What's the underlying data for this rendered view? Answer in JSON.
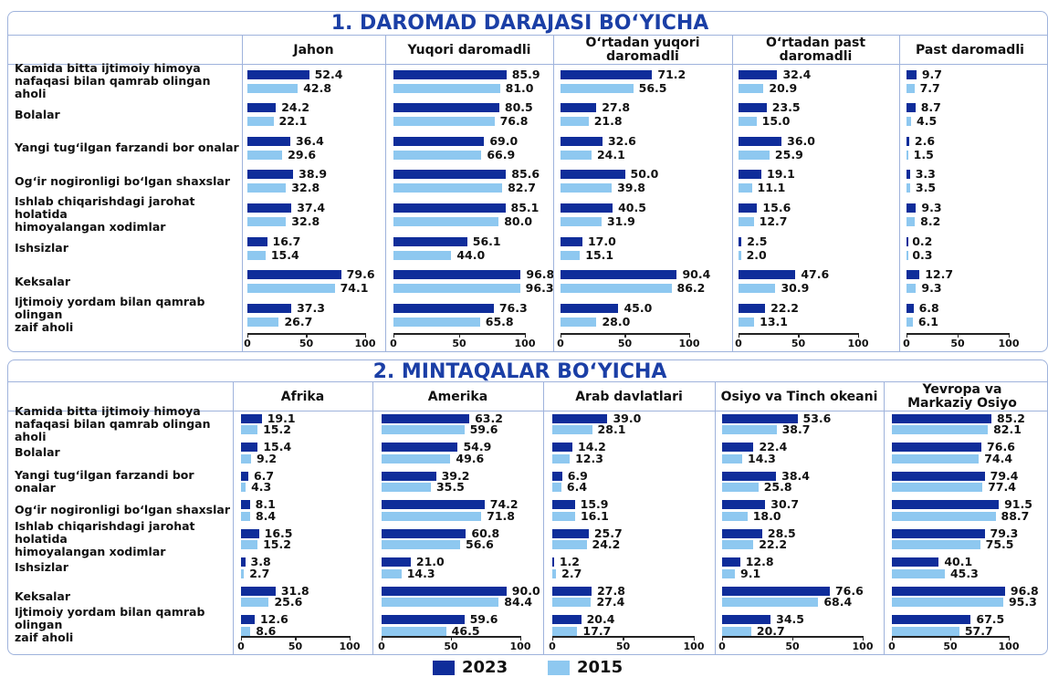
{
  "chart_data": [
    {
      "type": "bar",
      "orientation": "horizontal",
      "title": "1. DAROMAD DARAJASI BOʻYICHA",
      "categories": [
        "Kamida bitta ijtimoiy himoya\nnafaqasi bilan qamrab olingan aholi",
        "Bolalar",
        "Yangi tugʻilgan farzandi bor onalar",
        "Ogʻir nogironligi boʻlgan shaxslar",
        "Ishlab chiqarishdagi jarohat holatida\nhimoyalangan xodimlar",
        "Ishsizlar",
        "Keksalar",
        "Ijtimoiy yordam bilan qamrab olingan\nzaif aholi"
      ],
      "panels": [
        "Jahon",
        "Yuqori daromadli",
        "Oʻrtadan yuqori daromadli",
        "Oʻrtadan past daromadli",
        "Past daromadli"
      ],
      "xlim": [
        0,
        100
      ],
      "xticks": [
        0,
        50,
        100
      ],
      "series": [
        {
          "name": "2023",
          "color": "#0f2d9a",
          "values": [
            [
              52.4,
              24.2,
              36.4,
              38.9,
              37.4,
              16.7,
              79.6,
              37.3
            ],
            [
              85.9,
              80.5,
              69.0,
              85.6,
              85.1,
              56.1,
              96.8,
              76.3
            ],
            [
              71.2,
              27.8,
              32.6,
              50.0,
              40.5,
              17.0,
              90.4,
              45.0
            ],
            [
              32.4,
              23.5,
              36.0,
              19.1,
              15.6,
              2.5,
              47.6,
              22.2
            ],
            [
              9.7,
              8.7,
              2.6,
              3.3,
              9.3,
              0.2,
              12.7,
              6.8
            ]
          ],
          "value_labels": [
            [
              "52.4",
              "24.2",
              "36.4",
              "38.9",
              "37.4",
              "16.7",
              "79.6",
              "37.3"
            ],
            [
              "85.9",
              "80.5",
              "69.0",
              "85.6",
              "85.1",
              "56.1",
              "96.8",
              "76.3"
            ],
            [
              "71.2",
              "27.8",
              "32.6",
              "50.0",
              "40.5",
              "17.0",
              "90.4",
              "45.0"
            ],
            [
              "32.4",
              "23.5",
              "36.0",
              "19.1",
              "15.6",
              "2.5",
              "47.6",
              "22.2"
            ],
            [
              "9.7",
              "8.7",
              "2.6",
              "3.3",
              "9.3",
              "0.2",
              "12.7",
              "6.8"
            ]
          ]
        },
        {
          "name": "2015",
          "color": "#8ec8f0",
          "values": [
            [
              42.8,
              22.1,
              29.6,
              32.8,
              32.8,
              15.4,
              74.1,
              26.7
            ],
            [
              81.0,
              76.8,
              66.9,
              82.7,
              80.0,
              44.0,
              96.3,
              65.8
            ],
            [
              56.5,
              21.8,
              24.1,
              39.8,
              31.9,
              15.1,
              86.2,
              28.0
            ],
            [
              20.9,
              15.0,
              25.9,
              11.1,
              12.7,
              2.0,
              30.9,
              13.1
            ],
            [
              7.7,
              4.5,
              1.5,
              3.5,
              8.2,
              0.3,
              9.3,
              6.1
            ]
          ],
          "value_labels": [
            [
              "42.8",
              "22.1",
              "29.6",
              "32.8",
              "32.8",
              "15.4",
              "74.1",
              "26.7"
            ],
            [
              "81.0",
              "76.8",
              "66.9",
              "82.7",
              "80.0",
              "44.0",
              "96.3",
              "65.8"
            ],
            [
              "56.5",
              "21.8",
              "24.1",
              "39.8",
              "31.9",
              "15.1",
              "86.2",
              "28.0"
            ],
            [
              "20.9",
              "15.0",
              "25.9",
              "11.1",
              "12.7",
              "2.0",
              "30.9",
              "13.1"
            ],
            [
              "7.7",
              "4.5",
              "1.5",
              "3.5",
              "8.2",
              "0.3",
              "9.3",
              "6.1"
            ]
          ]
        }
      ]
    },
    {
      "type": "bar",
      "orientation": "horizontal",
      "title": "2. MINTAQALAR BOʻYICHA",
      "categories": [
        "Kamida bitta ijtimoiy himoya\nnafaqasi bilan qamrab olingan aholi",
        "Bolalar",
        "Yangi tugʻilgan farzandi bor onalar",
        "Ogʻir nogironligi boʻlgan shaxslar",
        "Ishlab chiqarishdagi jarohat holatida\nhimoyalangan xodimlar",
        "Ishsizlar",
        "Keksalar",
        "Ijtimoiy yordam bilan qamrab olingan\nzaif aholi"
      ],
      "panels": [
        "Afrika",
        "Amerika",
        "Arab davlatlari",
        "Osiyo va Tinch okeani",
        "Yevropa va\nMarkaziy Osiyo"
      ],
      "xlim": [
        0,
        100
      ],
      "xticks": [
        0,
        50,
        100
      ],
      "series": [
        {
          "color": "#0f2d9a",
          "values": [
            [
              19.1,
              15.4,
              6.7,
              8.1,
              16.5,
              3.8,
              31.8,
              12.6
            ],
            [
              63.2,
              54.9,
              39.2,
              74.2,
              60.8,
              21.0,
              90.0,
              59.6
            ],
            [
              39.0,
              14.2,
              6.9,
              15.9,
              25.7,
              1.2,
              27.8,
              20.4
            ],
            [
              53.6,
              22.4,
              38.4,
              30.7,
              28.5,
              12.8,
              76.6,
              34.5
            ],
            [
              85.2,
              76.6,
              79.4,
              91.5,
              79.3,
              40.1,
              96.8,
              67.5
            ]
          ],
          "value_labels": [
            [
              "19.1",
              "15.4",
              "6.7",
              "8.1",
              "16.5",
              "3.8",
              "31.8",
              "12.6"
            ],
            [
              "63.2",
              "54.9",
              "39.2",
              "74.2",
              "60.8",
              "21.0",
              "90.0",
              "59.6"
            ],
            [
              "39.0",
              "14.2",
              "6.9",
              "15.9",
              "25.7",
              "1.2",
              "27.8",
              "20.4"
            ],
            [
              "53.6",
              "22.4",
              "38.4",
              "30.7",
              "28.5",
              "12.8",
              "76.6",
              "34.5"
            ],
            [
              "85.2",
              "76.6",
              "79.4",
              "91.5",
              "79.3",
              "40.1",
              "96.8",
              "67.5"
            ]
          ]
        },
        {
          "color": "#8ec8f0",
          "values": [
            [
              15.2,
              9.2,
              4.3,
              8.4,
              15.2,
              2.7,
              25.6,
              8.6
            ],
            [
              59.6,
              49.6,
              35.5,
              71.8,
              56.6,
              14.3,
              84.4,
              46.5
            ],
            [
              28.1,
              12.3,
              6.4,
              16.1,
              24.2,
              2.7,
              27.4,
              17.7
            ],
            [
              38.7,
              14.3,
              25.8,
              18.0,
              22.2,
              9.1,
              68.4,
              20.7
            ],
            [
              82.1,
              74.4,
              77.4,
              88.7,
              75.5,
              45.3,
              95.3,
              57.7
            ]
          ],
          "value_labels": [
            [
              "15.2",
              "9.2",
              "4.3",
              "8.4",
              "15.2",
              "2.7",
              "25.6",
              "8.6"
            ],
            [
              "59.6",
              "49.6",
              "35.5",
              "71.8",
              "56.6",
              "14.3",
              "84.4",
              "46.5"
            ],
            [
              "28.1",
              "12.3",
              "6.4",
              "16.1",
              "24.2",
              "2.7",
              "27.4",
              "17.7"
            ],
            [
              "38.7",
              "14.3",
              "25.8",
              "18.0",
              "22.2",
              "9.1",
              "68.4",
              "20.7"
            ],
            [
              "82.1",
              "74.4",
              "77.4",
              "88.7",
              "75.5",
              "45.3",
              "95.3",
              "57.7"
            ]
          ]
        }
      ]
    }
  ]
}
